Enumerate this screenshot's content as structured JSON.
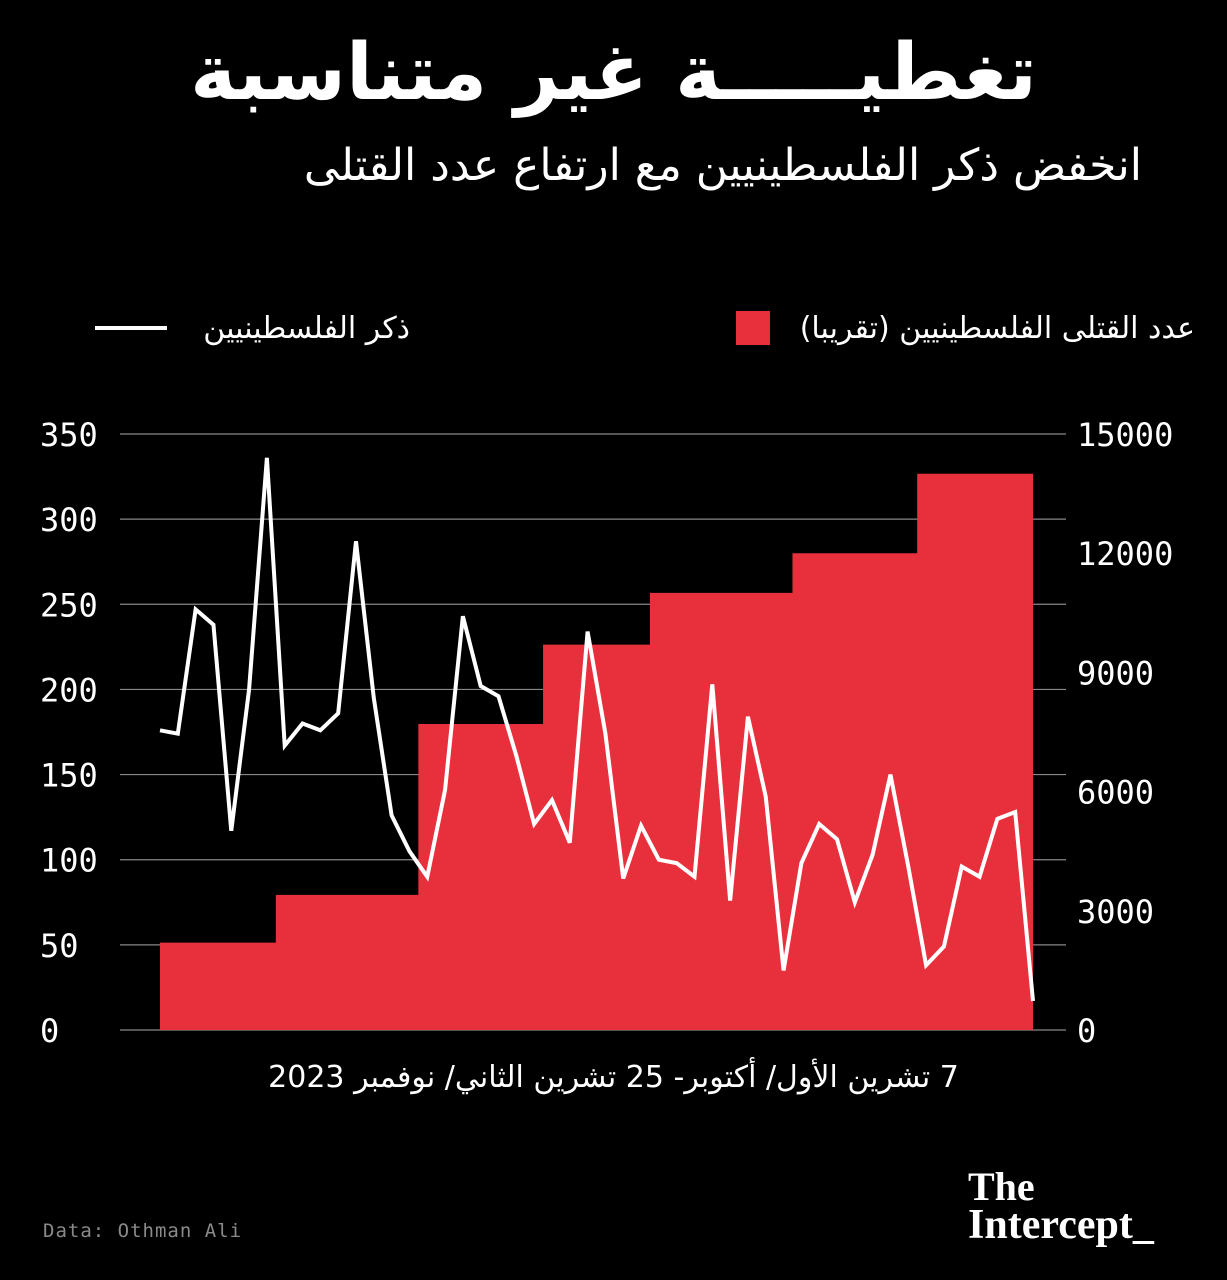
{
  "title": "تغطيـــــة غير متناسبة",
  "subtitle": "انخفض ذكر الفلسطينيين مع ارتفاع عدد القتلى",
  "legend": {
    "deaths": "عدد القتلى الفلسطينيين (تقريبا)",
    "mentions": "ذكر الفلسطينيين"
  },
  "colors": {
    "deaths": "#e8303d",
    "mentions": "#ffffff",
    "background": "#000000",
    "grid": "#888888"
  },
  "x_label": "7 تشرين الأول/ أكتوبر- 25 تشرين الثاني/ نوفمبر 2023",
  "source": "Data: Othman Ali",
  "brand": {
    "line1": "The",
    "line2": "Intercept_"
  },
  "chart_data": {
    "type": "line",
    "x_range": [
      "7 تشرين الأول/ أكتوبر",
      "25 تشرين الثاني/ نوفمبر 2023"
    ],
    "left_axis": {
      "ticks": [
        0,
        50,
        100,
        150,
        200,
        250,
        300,
        350
      ],
      "ylim": [
        0,
        350
      ]
    },
    "right_axis": {
      "ticks": [
        0,
        3000,
        6000,
        9000,
        12000,
        15000
      ],
      "ylim": [
        0,
        15000
      ]
    },
    "grid": "horizontal",
    "series": [
      {
        "name": "ذكر الفلسطينيين",
        "type": "line",
        "axis": "left",
        "values": [
          176,
          174,
          247,
          238,
          117,
          200,
          336,
          167,
          180,
          176,
          186,
          287,
          195,
          126,
          105,
          90,
          141,
          243,
          202,
          196,
          161,
          121,
          135,
          110,
          234,
          174,
          89,
          120,
          100,
          98,
          90,
          203,
          76,
          184,
          137,
          35,
          98,
          121,
          112,
          75,
          103,
          150,
          96,
          38,
          49,
          96,
          90,
          124,
          128,
          17
        ]
      },
      {
        "name": "عدد القتلى الفلسطينيين (تقريبا)",
        "type": "area",
        "axis": "right",
        "steps": [
          [
            0,
            2200
          ],
          [
            7,
            3400
          ],
          [
            15,
            7700
          ],
          [
            22,
            9700
          ],
          [
            28,
            11000
          ],
          [
            36,
            12000
          ],
          [
            43,
            14000
          ]
        ]
      }
    ]
  }
}
